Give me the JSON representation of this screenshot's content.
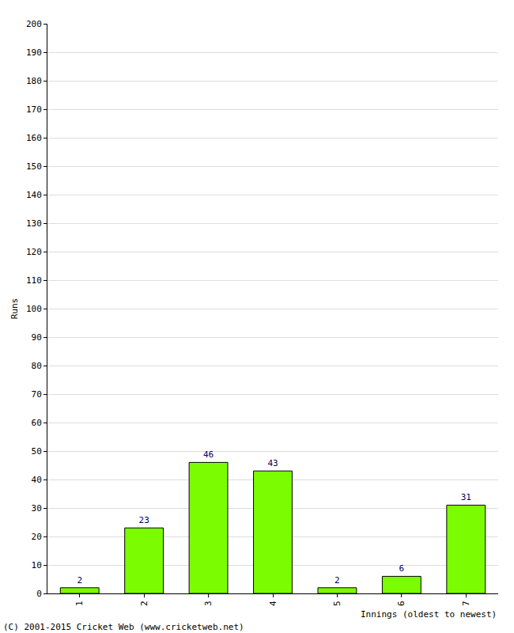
{
  "chart_data": {
    "type": "bar",
    "y_label": "Runs",
    "x_label": "Innings (oldest to newest)",
    "annotations": [
      "(C) 2001-2015 Cricket Web (www.cricketweb.net)"
    ],
    "categories": [
      "1",
      "2",
      "3",
      "4",
      "5",
      "6",
      "7"
    ],
    "values": [
      2,
      23,
      46,
      43,
      2,
      6,
      31
    ],
    "color": "#7cfc00",
    "ylim": [
      0,
      200
    ],
    "yticks": [
      0,
      10,
      20,
      30,
      40,
      50,
      60,
      70,
      80,
      90,
      100,
      110,
      120,
      130,
      140,
      150,
      160,
      170,
      180,
      190,
      200
    ],
    "grid": true,
    "data_labels": true
  }
}
